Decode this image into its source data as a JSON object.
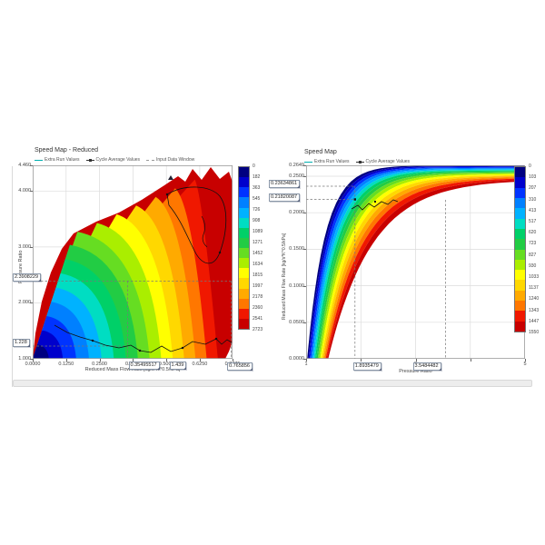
{
  "palette": [
    "#000080",
    "#0000cc",
    "#0033ff",
    "#0080ff",
    "#00b2ff",
    "#00ddc2",
    "#00d068",
    "#22cc44",
    "#66dd22",
    "#aaee00",
    "#ffff00",
    "#ffd800",
    "#ffaa00",
    "#ff7700",
    "#f01800",
    "#c80000"
  ],
  "chart_data": [
    {
      "type": "contour_map",
      "title": "Speed Map - Reduced",
      "legend": [
        {
          "label": "Extra Run Values"
        },
        {
          "label": "Cycle Average Values"
        },
        {
          "label": "Input Data Window"
        }
      ],
      "x_axis": {
        "title": "Reduced Mass Flow Rate [kg/s*K^0.5/kPa]",
        "min": 0,
        "max": 0.7475,
        "ticks": [
          {
            "label": "0.0000",
            "value": 0
          },
          {
            "label": "0.1250",
            "value": 0.125
          },
          {
            "label": "0.2500",
            "value": 0.25
          },
          {
            "label": "0.3750",
            "value": 0.375
          },
          {
            "label": "0.5000",
            "value": 0.5
          },
          {
            "label": "0.6250",
            "value": 0.625
          },
          {
            "label": "0.7475",
            "value": 0.7475
          }
        ]
      },
      "y_axis": {
        "title": "Pressure Ratio",
        "min": 1.0,
        "max": 4.46,
        "ticks": [
          {
            "label": "1.000",
            "value": 1
          },
          {
            "label": "2.000",
            "value": 2
          },
          {
            "label": "3.000",
            "value": 3
          },
          {
            "label": "4.000",
            "value": 4
          },
          {
            "label": "4.460",
            "value": 4.46
          }
        ]
      },
      "colorbar": {
        "values": [
          "0",
          "182",
          "363",
          "545",
          "726",
          "908",
          "1089",
          "1271",
          "1452",
          "1634",
          "1815",
          "1997",
          "2178",
          "2360",
          "2541",
          "2723"
        ]
      },
      "markers_x": [
        {
          "label": "0.35495517",
          "value": 0.35495517
        },
        {
          "label": "0.765856",
          "value": 0.765856
        }
      ],
      "marker_tag": "1.439",
      "markers_y": [
        {
          "label": "2.3908229",
          "value": 2.3908229
        },
        {
          "label": "1.228",
          "value": 1.228
        }
      ]
    },
    {
      "type": "contour_map",
      "title": "Speed Map",
      "legend": [
        {
          "label": "Extra Run Values"
        },
        {
          "label": "Cycle Average Values"
        }
      ],
      "x_axis": {
        "title": "Pressure Ratio",
        "min": 1,
        "max": 5,
        "ticks": [
          {
            "label": "1",
            "value": 1
          },
          {
            "label": "3",
            "value": 3
          },
          {
            "label": "5",
            "value": 5
          }
        ],
        "minor_ticks": [
          2,
          4
        ]
      },
      "y_axis": {
        "title": "Reduced Mass Flow Rate [kg/s*K^0.5/kPa]",
        "min": 0,
        "max": 0.2649,
        "ticks": [
          {
            "label": "0.0000",
            "value": 0
          },
          {
            "label": "0.0500",
            "value": 0.05
          },
          {
            "label": "0.1000",
            "value": 0.1
          },
          {
            "label": "0.1500",
            "value": 0.15
          },
          {
            "label": "0.2000",
            "value": 0.2
          },
          {
            "label": "0.2500",
            "value": 0.25
          },
          {
            "label": "0.2649",
            "value": 0.2649
          }
        ]
      },
      "colorbar": {
        "values": [
          "0",
          "103",
          "207",
          "310",
          "413",
          "517",
          "620",
          "723",
          "827",
          "930",
          "1033",
          "1137",
          "1240",
          "1343",
          "1447",
          "1550"
        ]
      },
      "markers_x": [
        {
          "label": "1.8935479",
          "value": 1.8935479
        },
        {
          "label": "3.5484482",
          "value": 3.5484482
        }
      ],
      "markers_y": [
        {
          "label": "0.23634861",
          "value": 0.23634861
        },
        {
          "label": "0.21820087",
          "value": 0.21820087
        }
      ]
    }
  ]
}
